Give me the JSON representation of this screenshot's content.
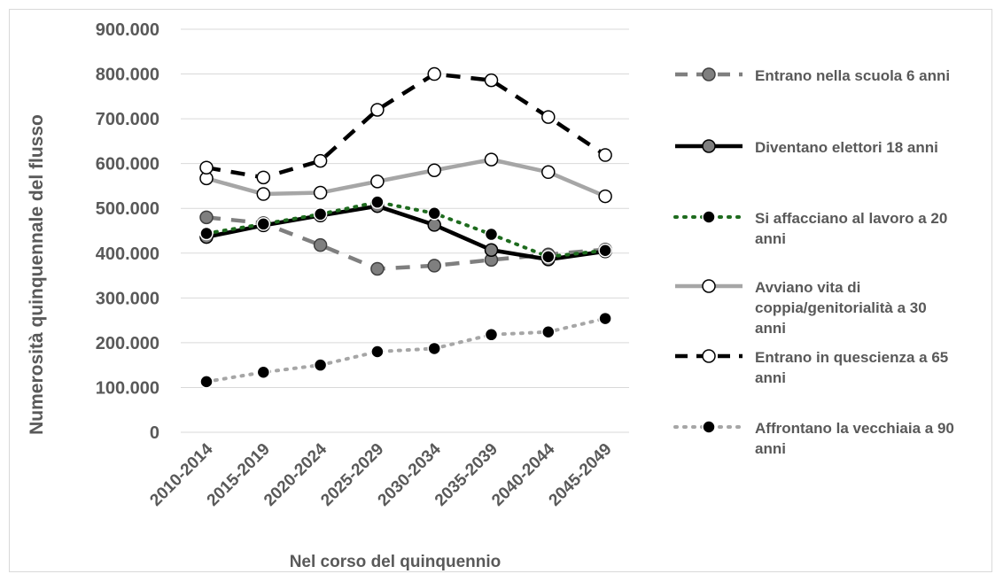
{
  "chart_data": {
    "type": "line",
    "title": "",
    "xlabel": "Nel corso del quinquennio",
    "ylabel": "Numerosità quinquennale del flusso",
    "categories": [
      "2010-2014",
      "2015-2019",
      "2020-2024",
      "2025-2029",
      "2030-2034",
      "2035-2039",
      "2040-2044",
      "2045-2049"
    ],
    "ylim": [
      0,
      900000
    ],
    "yticks": [
      0,
      100000,
      200000,
      300000,
      400000,
      500000,
      600000,
      700000,
      800000,
      900000
    ],
    "ytick_labels": [
      "0",
      "100.000",
      "200.000",
      "300.000",
      "400.000",
      "500.000",
      "600.000",
      "700.000",
      "800.000",
      "900.000"
    ],
    "grid": true,
    "legend_position": "right",
    "series": [
      {
        "name": "Entrano nella scuola 6 anni",
        "legend_lines": [
          "Entrano nella scuola 6 anni"
        ],
        "values": [
          480000,
          467000,
          418000,
          365000,
          372000,
          385000,
          397000,
          408000
        ],
        "line_color": "#7f7f7f",
        "dash": "dash",
        "marker_fill": "#7f7f7f",
        "marker_stroke": "#404040"
      },
      {
        "name": "Diventano elettori 18 anni",
        "legend_lines": [
          "Diventano elettori 18 anni"
        ],
        "values": [
          436000,
          462000,
          484000,
          505000,
          463000,
          407000,
          386000,
          404000
        ],
        "line_color": "#000000",
        "dash": "solid",
        "marker_fill": "#7f7f7f",
        "marker_stroke": "#000000"
      },
      {
        "name": "Si affacciano al lavoro a 20 anni",
        "legend_lines": [
          "Si affacciano al lavoro a 20",
          "anni"
        ],
        "values": [
          444000,
          465000,
          487000,
          514000,
          489000,
          442000,
          392000,
          406000
        ],
        "line_color": "#1e6b1e",
        "dash": "dot",
        "marker_fill": "#000000",
        "marker_stroke": "#ffffff"
      },
      {
        "name": "Avviano vita di coppia/genitorialità a 30 anni",
        "legend_lines": [
          "Avviano vita di",
          "coppia/genitorialità a 30",
          "anni"
        ],
        "values": [
          567000,
          532000,
          535000,
          560000,
          585000,
          609000,
          581000,
          527000
        ],
        "line_color": "#a6a6a6",
        "dash": "solid",
        "marker_fill": "#ffffff",
        "marker_stroke": "#000000"
      },
      {
        "name": "Entrano in quescienza a 65 anni",
        "legend_lines": [
          "Entrano in quescienza a 65",
          "anni"
        ],
        "values": [
          591000,
          569000,
          606000,
          720000,
          800000,
          786000,
          704000,
          619000
        ],
        "line_color": "#000000",
        "dash": "dash",
        "marker_fill": "#ffffff",
        "marker_stroke": "#000000"
      },
      {
        "name": "Affrontano la vecchiaia a 90 anni",
        "legend_lines": [
          "Affrontano la vecchiaia a 90",
          "anni"
        ],
        "values": [
          113000,
          134000,
          150000,
          180000,
          187000,
          218000,
          224000,
          254000
        ],
        "line_color": "#a6a6a6",
        "dash": "dot",
        "marker_fill": "#000000",
        "marker_stroke": "#ffffff"
      }
    ]
  }
}
